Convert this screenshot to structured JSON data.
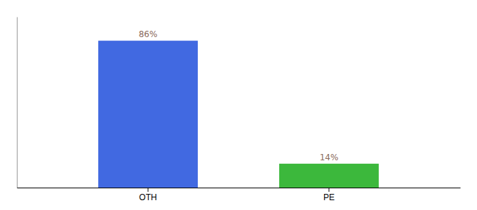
{
  "chart_data": {
    "type": "bar",
    "categories": [
      "OTH",
      "PE"
    ],
    "values": [
      86,
      14
    ],
    "value_labels": [
      "86%",
      "14%"
    ],
    "colors": [
      "#4169e1",
      "#3cb83c"
    ],
    "ylim": [
      0,
      100
    ],
    "grid": false,
    "data_labels": true,
    "tick_labels": "x"
  }
}
